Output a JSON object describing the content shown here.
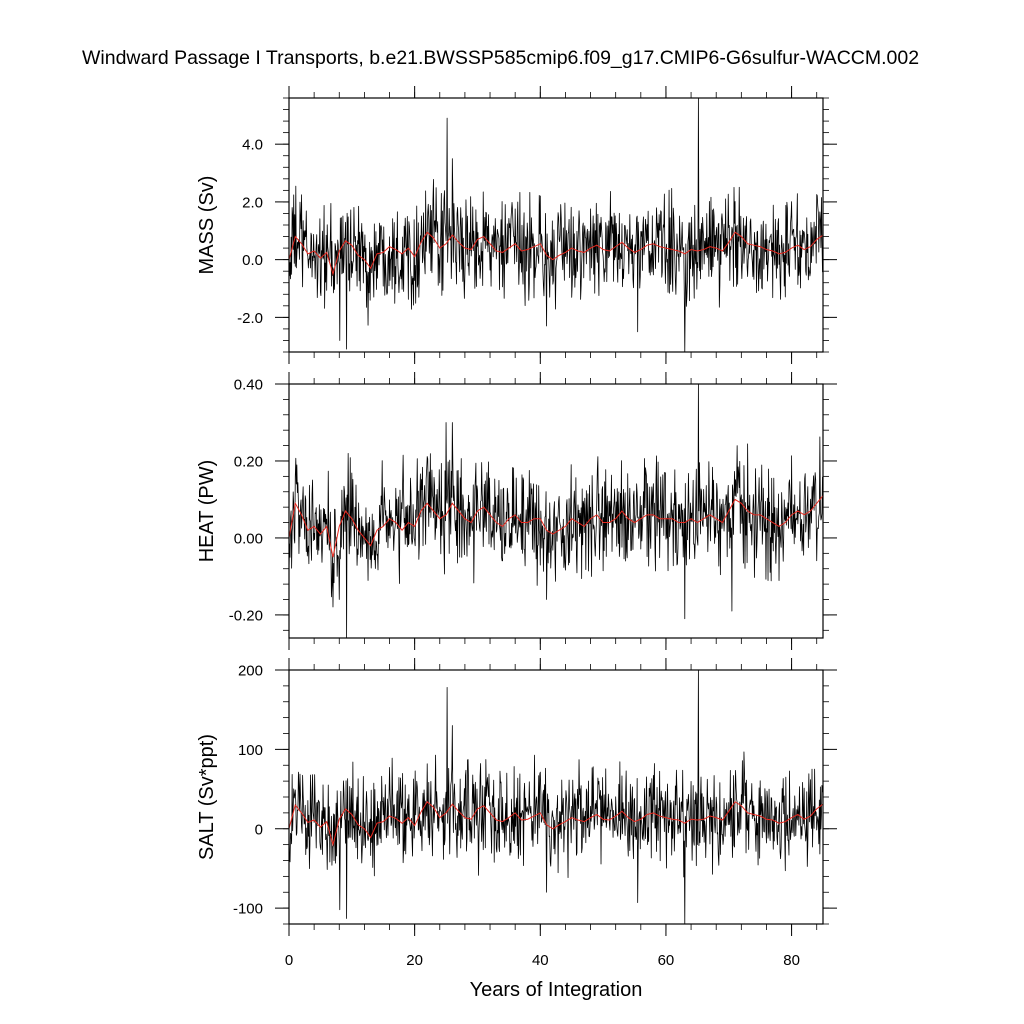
{
  "title": "Windward Passage I Transports, b.e21.BWSSP585cmip6.f09_g17.CMIP6-G6sulfur-WACCM.002",
  "colors": {
    "raw": "#000000",
    "smoothed": "#e8281e",
    "axis": "#000000"
  },
  "chart_data": [
    {
      "type": "line",
      "ylabel": "MASS (Sv)",
      "xlim": [
        0,
        85
      ],
      "ylim": [
        -3.2,
        5.6
      ],
      "yticks": [
        -2.0,
        0.0,
        2.0,
        4.0
      ],
      "ytick_labels": [
        "-2.0",
        "0.0",
        "2.0",
        "4.0"
      ],
      "noise_amplitude": 0.85,
      "spikes": [
        [
          25.2,
          4.9
        ],
        [
          26.0,
          3.5
        ],
        [
          65.2,
          5.6
        ],
        [
          63.0,
          -3.2
        ],
        [
          9.2,
          -3.1
        ],
        [
          8.1,
          -2.8
        ],
        [
          41.0,
          -2.3
        ],
        [
          55.5,
          -2.5
        ]
      ],
      "smoothed": {
        "x": [
          0,
          1,
          2,
          3,
          4,
          5,
          6,
          7,
          8,
          9,
          10,
          11,
          12,
          13,
          14,
          15,
          16,
          17,
          18,
          19,
          20,
          21,
          22,
          23,
          24,
          25,
          26,
          27,
          28,
          29,
          30,
          31,
          32,
          33,
          34,
          35,
          36,
          37,
          38,
          39,
          40,
          41,
          42,
          43,
          44,
          45,
          46,
          47,
          48,
          49,
          50,
          51,
          52,
          53,
          54,
          55,
          56,
          57,
          58,
          59,
          60,
          61,
          62,
          63,
          64,
          65,
          66,
          67,
          68,
          69,
          70,
          71,
          72,
          73,
          74,
          75,
          76,
          77,
          78,
          79,
          80,
          81,
          82,
          83,
          84,
          85
        ],
        "y": [
          0.0,
          0.8,
          0.55,
          0.2,
          0.3,
          0.05,
          0.25,
          -0.5,
          0.3,
          0.65,
          0.5,
          0.15,
          0.0,
          -0.3,
          0.2,
          0.25,
          0.45,
          0.35,
          0.2,
          0.4,
          0.1,
          0.6,
          0.95,
          0.75,
          0.4,
          0.55,
          0.85,
          0.6,
          0.4,
          0.35,
          0.7,
          0.8,
          0.55,
          0.3,
          0.25,
          0.4,
          0.55,
          0.3,
          0.35,
          0.45,
          0.55,
          0.15,
          0.0,
          0.15,
          0.25,
          0.4,
          0.3,
          0.25,
          0.4,
          0.5,
          0.35,
          0.3,
          0.45,
          0.6,
          0.4,
          0.25,
          0.35,
          0.5,
          0.55,
          0.45,
          0.4,
          0.35,
          0.3,
          0.2,
          0.35,
          0.3,
          0.35,
          0.45,
          0.4,
          0.3,
          0.6,
          0.95,
          0.8,
          0.55,
          0.5,
          0.45,
          0.35,
          0.3,
          0.2,
          0.25,
          0.4,
          0.5,
          0.35,
          0.45,
          0.7,
          0.85
        ]
      }
    },
    {
      "type": "line",
      "ylabel": "HEAT (PW)",
      "xlim": [
        0,
        85
      ],
      "ylim": [
        -0.26,
        0.4
      ],
      "yticks": [
        -0.2,
        0.0,
        0.2,
        0.4
      ],
      "ytick_labels": [
        "-0.20",
        "0.00",
        "0.20",
        "0.40"
      ],
      "noise_amplitude": 0.065,
      "spikes": [
        [
          25.0,
          0.3
        ],
        [
          26.0,
          0.3
        ],
        [
          65.2,
          0.4
        ],
        [
          63.0,
          -0.21
        ],
        [
          9.2,
          -0.26
        ],
        [
          8.0,
          -0.16
        ],
        [
          41.0,
          -0.16
        ],
        [
          70.5,
          -0.19
        ]
      ],
      "smoothed": {
        "x": [
          0,
          1,
          2,
          3,
          4,
          5,
          6,
          7,
          8,
          9,
          10,
          11,
          12,
          13,
          14,
          15,
          16,
          17,
          18,
          19,
          20,
          21,
          22,
          23,
          24,
          25,
          26,
          27,
          28,
          29,
          30,
          31,
          32,
          33,
          34,
          35,
          36,
          37,
          38,
          39,
          40,
          41,
          42,
          43,
          44,
          45,
          46,
          47,
          48,
          49,
          50,
          51,
          52,
          53,
          54,
          55,
          56,
          57,
          58,
          59,
          60,
          61,
          62,
          63,
          64,
          65,
          66,
          67,
          68,
          69,
          70,
          71,
          72,
          73,
          74,
          75,
          76,
          77,
          78,
          79,
          80,
          81,
          82,
          83,
          84,
          85
        ],
        "y": [
          0.0,
          0.09,
          0.06,
          0.02,
          0.03,
          0.01,
          0.03,
          -0.05,
          0.03,
          0.07,
          0.05,
          0.02,
          0.0,
          -0.02,
          0.02,
          0.03,
          0.05,
          0.04,
          0.02,
          0.04,
          0.03,
          0.07,
          0.09,
          0.07,
          0.05,
          0.06,
          0.09,
          0.07,
          0.05,
          0.04,
          0.07,
          0.08,
          0.06,
          0.04,
          0.03,
          0.05,
          0.06,
          0.04,
          0.04,
          0.05,
          0.05,
          0.02,
          0.01,
          0.02,
          0.03,
          0.05,
          0.04,
          0.03,
          0.05,
          0.06,
          0.04,
          0.04,
          0.05,
          0.07,
          0.05,
          0.04,
          0.05,
          0.06,
          0.06,
          0.05,
          0.05,
          0.05,
          0.04,
          0.04,
          0.05,
          0.04,
          0.05,
          0.06,
          0.05,
          0.04,
          0.07,
          0.1,
          0.09,
          0.07,
          0.06,
          0.06,
          0.05,
          0.04,
          0.03,
          0.04,
          0.06,
          0.07,
          0.06,
          0.07,
          0.09,
          0.11
        ]
      }
    },
    {
      "type": "line",
      "ylabel": "SALT (Sv*ppt)",
      "xlim": [
        0,
        85
      ],
      "ylim": [
        -120,
        200
      ],
      "yticks": [
        -100,
        0,
        100,
        200
      ],
      "ytick_labels": [
        "-100",
        "0",
        "100",
        "200"
      ],
      "noise_amplitude": 30,
      "spikes": [
        [
          25.2,
          178
        ],
        [
          26.0,
          130
        ],
        [
          65.2,
          200
        ],
        [
          63.0,
          -120
        ],
        [
          9.2,
          -113
        ],
        [
          8.1,
          -102
        ],
        [
          41.0,
          -80
        ],
        [
          55.5,
          -93
        ]
      ],
      "smoothed": {
        "x": [
          0,
          1,
          2,
          3,
          4,
          5,
          6,
          7,
          8,
          9,
          10,
          11,
          12,
          13,
          14,
          15,
          16,
          17,
          18,
          19,
          20,
          21,
          22,
          23,
          24,
          25,
          26,
          27,
          28,
          29,
          30,
          31,
          32,
          33,
          34,
          35,
          36,
          37,
          38,
          39,
          40,
          41,
          42,
          43,
          44,
          45,
          46,
          47,
          48,
          49,
          50,
          51,
          52,
          53,
          54,
          55,
          56,
          57,
          58,
          59,
          60,
          61,
          62,
          63,
          64,
          65,
          66,
          67,
          68,
          69,
          70,
          71,
          72,
          73,
          74,
          75,
          76,
          77,
          78,
          79,
          80,
          81,
          82,
          83,
          84,
          85
        ],
        "y": [
          0,
          30,
          20,
          8,
          11,
          2,
          9,
          -20,
          12,
          25,
          18,
          5,
          0,
          -11,
          7,
          9,
          16,
          13,
          7,
          14,
          4,
          21,
          34,
          27,
          14,
          20,
          31,
          22,
          14,
          12,
          25,
          29,
          20,
          11,
          9,
          14,
          20,
          11,
          12,
          16,
          20,
          5,
          0,
          5,
          9,
          14,
          11,
          9,
          14,
          18,
          12,
          11,
          16,
          22,
          14,
          9,
          12,
          18,
          20,
          16,
          14,
          12,
          11,
          7,
          12,
          11,
          12,
          16,
          14,
          11,
          22,
          34,
          29,
          20,
          18,
          16,
          12,
          11,
          7,
          9,
          14,
          18,
          12,
          16,
          25,
          31
        ]
      }
    }
  ],
  "xaxis": {
    "label": "Years of Integration",
    "ticks": [
      0,
      20,
      40,
      60,
      80
    ],
    "tick_labels": [
      "0",
      "20",
      "40",
      "60",
      "80"
    ],
    "samples_per_year": 12
  }
}
